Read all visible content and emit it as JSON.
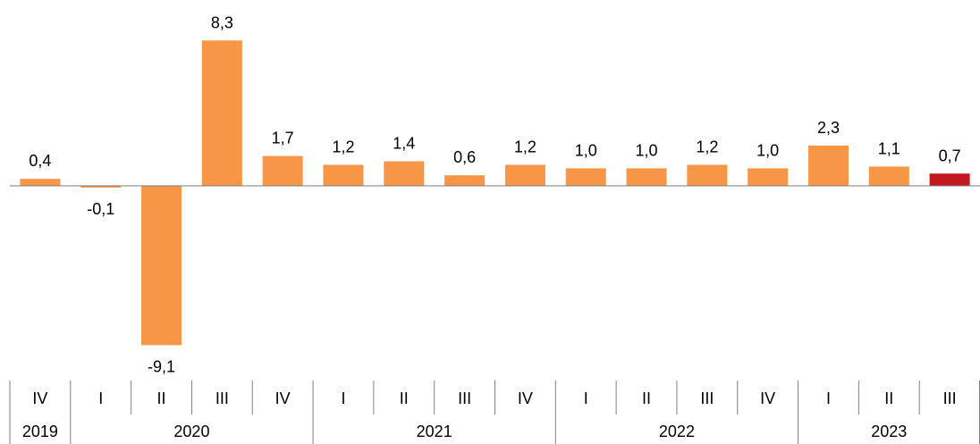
{
  "chart_data": {
    "type": "bar",
    "categories": [
      "IV",
      "I",
      "II",
      "III",
      "IV",
      "I",
      "II",
      "III",
      "IV",
      "I",
      "II",
      "III",
      "IV",
      "I",
      "II",
      "III"
    ],
    "values": [
      0.4,
      -0.1,
      -9.1,
      8.3,
      1.7,
      1.2,
      1.4,
      0.6,
      1.2,
      1.0,
      1.0,
      1.2,
      1.0,
      2.3,
      1.1,
      0.7
    ],
    "data_labels": [
      "0,4",
      "-0,1",
      "-9,1",
      "8,3",
      "1,7",
      "1,2",
      "1,4",
      "0,6",
      "1,2",
      "1,0",
      "1,0",
      "1,2",
      "1,0",
      "2,3",
      "1,1",
      "0,7"
    ],
    "years": [
      {
        "label": "2019",
        "count": 1
      },
      {
        "label": "2020",
        "count": 4
      },
      {
        "label": "2021",
        "count": 4
      },
      {
        "label": "2022",
        "count": 4
      },
      {
        "label": "2023",
        "count": 3
      }
    ],
    "colors": {
      "default": "#F79646",
      "highlight": "#C0181E",
      "axis": "#7F7F7F"
    },
    "highlight_index": 15,
    "title": "",
    "xlabel": "",
    "ylabel": "",
    "grid": false,
    "legend": "none"
  }
}
